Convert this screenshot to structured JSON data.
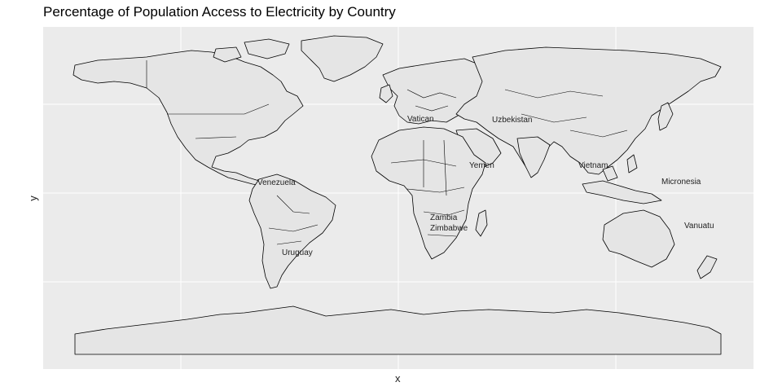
{
  "title": "Percentage of Population Access to Electricity by Country",
  "xlabel": "x",
  "ylabel": "y",
  "colors": {
    "panel": "#ebebeb",
    "grid": "#ffffff",
    "land": "#e5e5e5",
    "border": "#000000"
  },
  "labels": {
    "venezuela": "Venezuela",
    "uruguay": "Uruguay",
    "yemen": "Yemen",
    "vietnam": "Vietnam",
    "micronesia": "Micronesia",
    "vanuatu": "Vanuatu",
    "zambia": "Zambia",
    "zimbabwe": "Zimbabwe",
    "vatican": "Vatican",
    "uzbekistan": "Uzbekistan"
  }
}
